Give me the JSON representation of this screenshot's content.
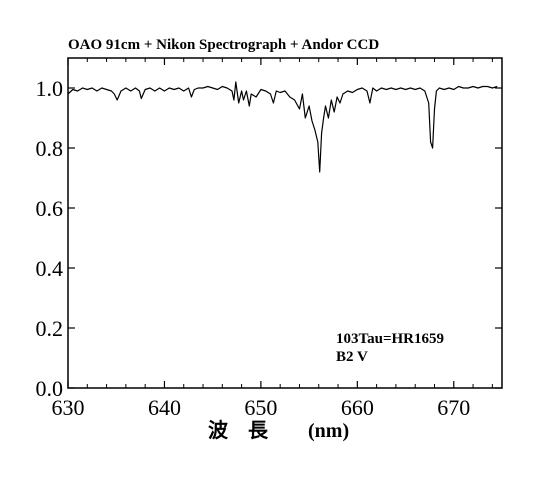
{
  "chart_data": {
    "type": "line",
    "title": "OAO 91cm + Nikon Spectrograph + Andor CCD",
    "xlabel": "波　長　　(nm)",
    "ylabel": "",
    "xlim": [
      630,
      675
    ],
    "ylim": [
      0.0,
      1.1
    ],
    "xticks": [
      630,
      640,
      650,
      660,
      670
    ],
    "xtick_labels": [
      "630",
      "640",
      "650",
      "660",
      "670"
    ],
    "yticks": [
      0.0,
      0.2,
      0.4,
      0.6,
      0.8,
      1.0
    ],
    "ytick_labels": [
      "0.0",
      "0.2",
      "0.4",
      "0.6",
      "0.8",
      "1.0"
    ],
    "grid": false,
    "annotations": [
      "103Tau=HR1659",
      "B2 V"
    ],
    "series": [
      {
        "x": [
          630.0,
          630.5,
          631.0,
          631.5,
          632.0,
          632.5,
          633.0,
          633.5,
          634.0,
          634.5,
          634.8,
          635.1,
          635.5,
          636.0,
          636.5,
          637.0,
          637.4,
          637.6,
          638.0,
          638.5,
          639.0,
          639.5,
          640.0,
          640.5,
          641.0,
          641.5,
          642.0,
          642.5,
          642.8,
          643.1,
          643.5,
          644.0,
          644.5,
          645.0,
          645.5,
          646.0,
          646.5,
          647.0,
          647.2,
          647.4,
          647.7,
          648.0,
          648.2,
          648.5,
          648.8,
          649.0,
          649.5,
          650.0,
          650.5,
          651.0,
          651.3,
          651.6,
          652.0,
          652.5,
          653.0,
          653.5,
          654.0,
          654.3,
          654.6,
          655.0,
          655.3,
          655.6,
          655.9,
          656.1,
          656.3,
          656.5,
          656.7,
          657.0,
          657.3,
          657.6,
          657.9,
          658.2,
          658.5,
          659.0,
          659.5,
          660.0,
          660.5,
          661.0,
          661.3,
          661.6,
          662.0,
          662.5,
          663.0,
          663.5,
          664.0,
          664.5,
          665.0,
          665.5,
          666.0,
          666.5,
          667.0,
          667.4,
          667.6,
          667.8,
          668.0,
          668.2,
          668.5,
          669.0,
          669.5,
          670.0,
          670.5,
          671.0,
          671.5,
          672.0,
          672.5,
          673.0,
          673.5,
          674.0,
          674.5
        ],
        "values": [
          0.98,
          0.995,
          0.99,
          1.0,
          0.995,
          1.0,
          0.99,
          1.0,
          0.995,
          0.99,
          0.98,
          0.96,
          0.99,
          1.0,
          0.99,
          1.0,
          0.99,
          0.965,
          0.995,
          1.0,
          0.99,
          1.0,
          0.99,
          1.0,
          0.995,
          1.0,
          0.99,
          1.0,
          0.97,
          0.995,
          1.0,
          1.0,
          1.005,
          1.0,
          0.995,
          1.005,
          1.0,
          0.99,
          0.96,
          1.02,
          0.95,
          0.99,
          0.96,
          0.99,
          0.94,
          0.98,
          0.97,
          0.995,
          0.99,
          0.98,
          0.95,
          0.99,
          0.985,
          0.99,
          0.97,
          0.96,
          0.93,
          0.98,
          0.9,
          0.94,
          0.89,
          0.86,
          0.82,
          0.72,
          0.85,
          0.9,
          0.94,
          0.9,
          0.96,
          0.92,
          0.97,
          0.95,
          0.98,
          0.99,
          0.985,
          0.995,
          1.0,
          0.99,
          0.95,
          1.0,
          0.99,
          1.0,
          0.995,
          1.0,
          0.995,
          1.0,
          0.995,
          1.0,
          0.995,
          1.0,
          0.99,
          0.95,
          0.82,
          0.8,
          0.93,
          0.99,
          1.0,
          0.995,
          1.0,
          0.995,
          1.005,
          1.0,
          1.0,
          1.005,
          1.0,
          1.005,
          1.005,
          1.0,
          1.005
        ]
      }
    ]
  }
}
